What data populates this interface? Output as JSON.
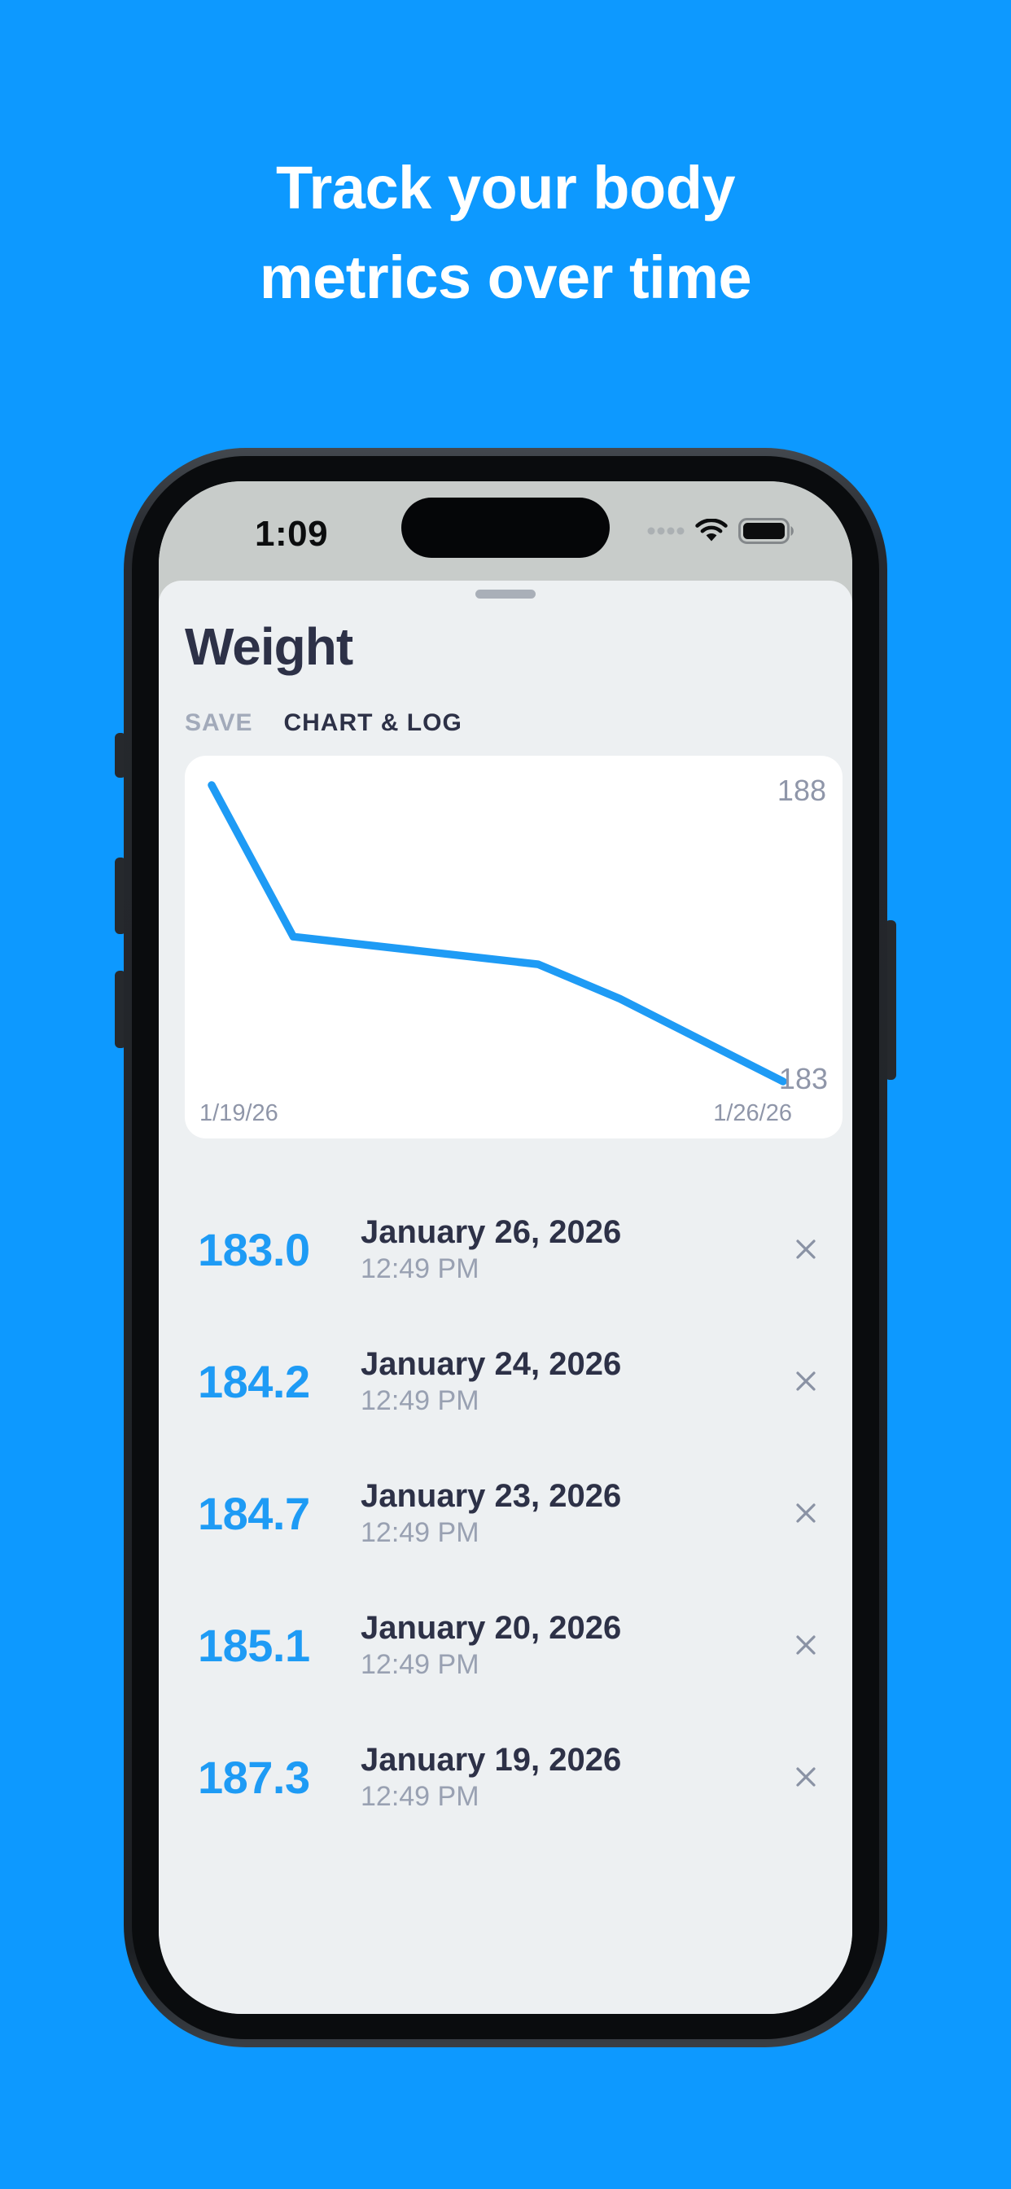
{
  "heading": {
    "line1": "Track your body",
    "line2": "metrics over time"
  },
  "status_bar": {
    "time": "1:09",
    "icons": [
      "cellular-dots-icon",
      "wifi-icon",
      "battery-icon"
    ]
  },
  "sheet": {
    "title": "Weight",
    "grabber": "drag-handle",
    "tabs": [
      {
        "label": "SAVE",
        "active": false
      },
      {
        "label": "CHART & LOG",
        "active": true
      }
    ]
  },
  "chart_data": {
    "type": "line",
    "title": "",
    "xlabel": "",
    "ylabel": "",
    "x_labels": [
      "1/19/26",
      "1/26/26"
    ],
    "x_dates": [
      "1/19/26",
      "1/20/26",
      "1/23/26",
      "1/24/26",
      "1/26/26"
    ],
    "x_day_offsets": [
      0,
      1,
      4,
      5,
      7
    ],
    "values": [
      187.3,
      185.1,
      184.7,
      184.2,
      183.0
    ],
    "y_axis_labels": {
      "max": "188",
      "min": "183"
    },
    "ylim": [
      183,
      188
    ],
    "grid": false,
    "legend": false,
    "line_color": "#1E9BF5"
  },
  "log": {
    "entries": [
      {
        "value": "183.0",
        "date": "January 26, 2026",
        "time": "12:49 PM"
      },
      {
        "value": "184.2",
        "date": "January 24, 2026",
        "time": "12:49 PM"
      },
      {
        "value": "184.7",
        "date": "January 23, 2026",
        "time": "12:49 PM"
      },
      {
        "value": "185.1",
        "date": "January 20, 2026",
        "time": "12:49 PM"
      },
      {
        "value": "187.3",
        "date": "January 19, 2026",
        "time": "12:49 PM"
      }
    ],
    "delete_icon": "x-close-icon"
  },
  "colors": {
    "background": "#0D99FF",
    "accent": "#1E9BF5",
    "title_text": "#2D3147",
    "muted_text": "#A2AABA",
    "time_text": "#99A1B2",
    "chart_label": "#8F96A9",
    "sheet_bg": "#EDF0F2",
    "card_bg": "#FFFFFF",
    "status_bar_bg": "#C8CCCA",
    "heading_text": "#FFFFFF"
  }
}
